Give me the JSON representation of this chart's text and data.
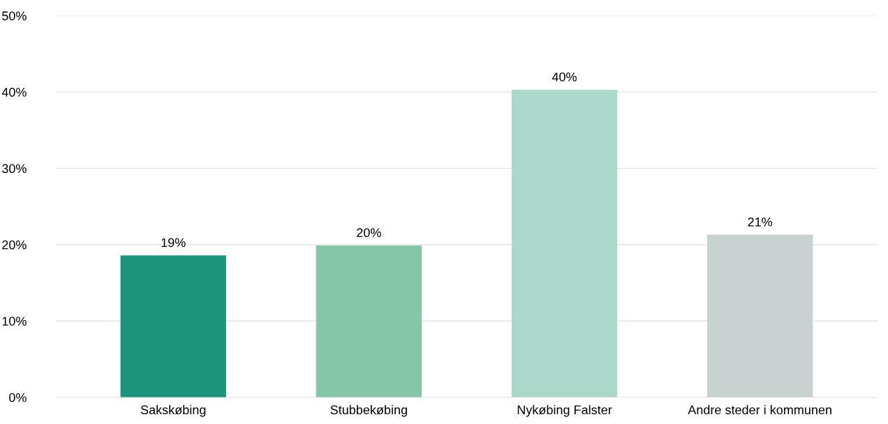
{
  "chart_data": {
    "type": "bar",
    "categories": [
      "Sakskøbing",
      "Stubbekøbing",
      "Nykøbing Falster",
      "Andre steder i kommunen"
    ],
    "values": [
      18.6,
      19.9,
      40.3,
      21.3
    ],
    "colors": [
      "#1a957b",
      "#85c6a9",
      "#acd8cb",
      "#c8d3d1"
    ],
    "value_labels": [
      "19%",
      "20%",
      "40%",
      "21%"
    ],
    "ylim": [
      0,
      50
    ],
    "yticks": [
      {
        "value": 0,
        "label": "0%"
      },
      {
        "value": 10,
        "label": "10%"
      },
      {
        "value": 20,
        "label": "20%"
      },
      {
        "value": 30,
        "label": "30%"
      },
      {
        "value": 40,
        "label": "40%"
      },
      {
        "value": 50,
        "label": "50%"
      }
    ],
    "grid": "y",
    "legend": false
  }
}
